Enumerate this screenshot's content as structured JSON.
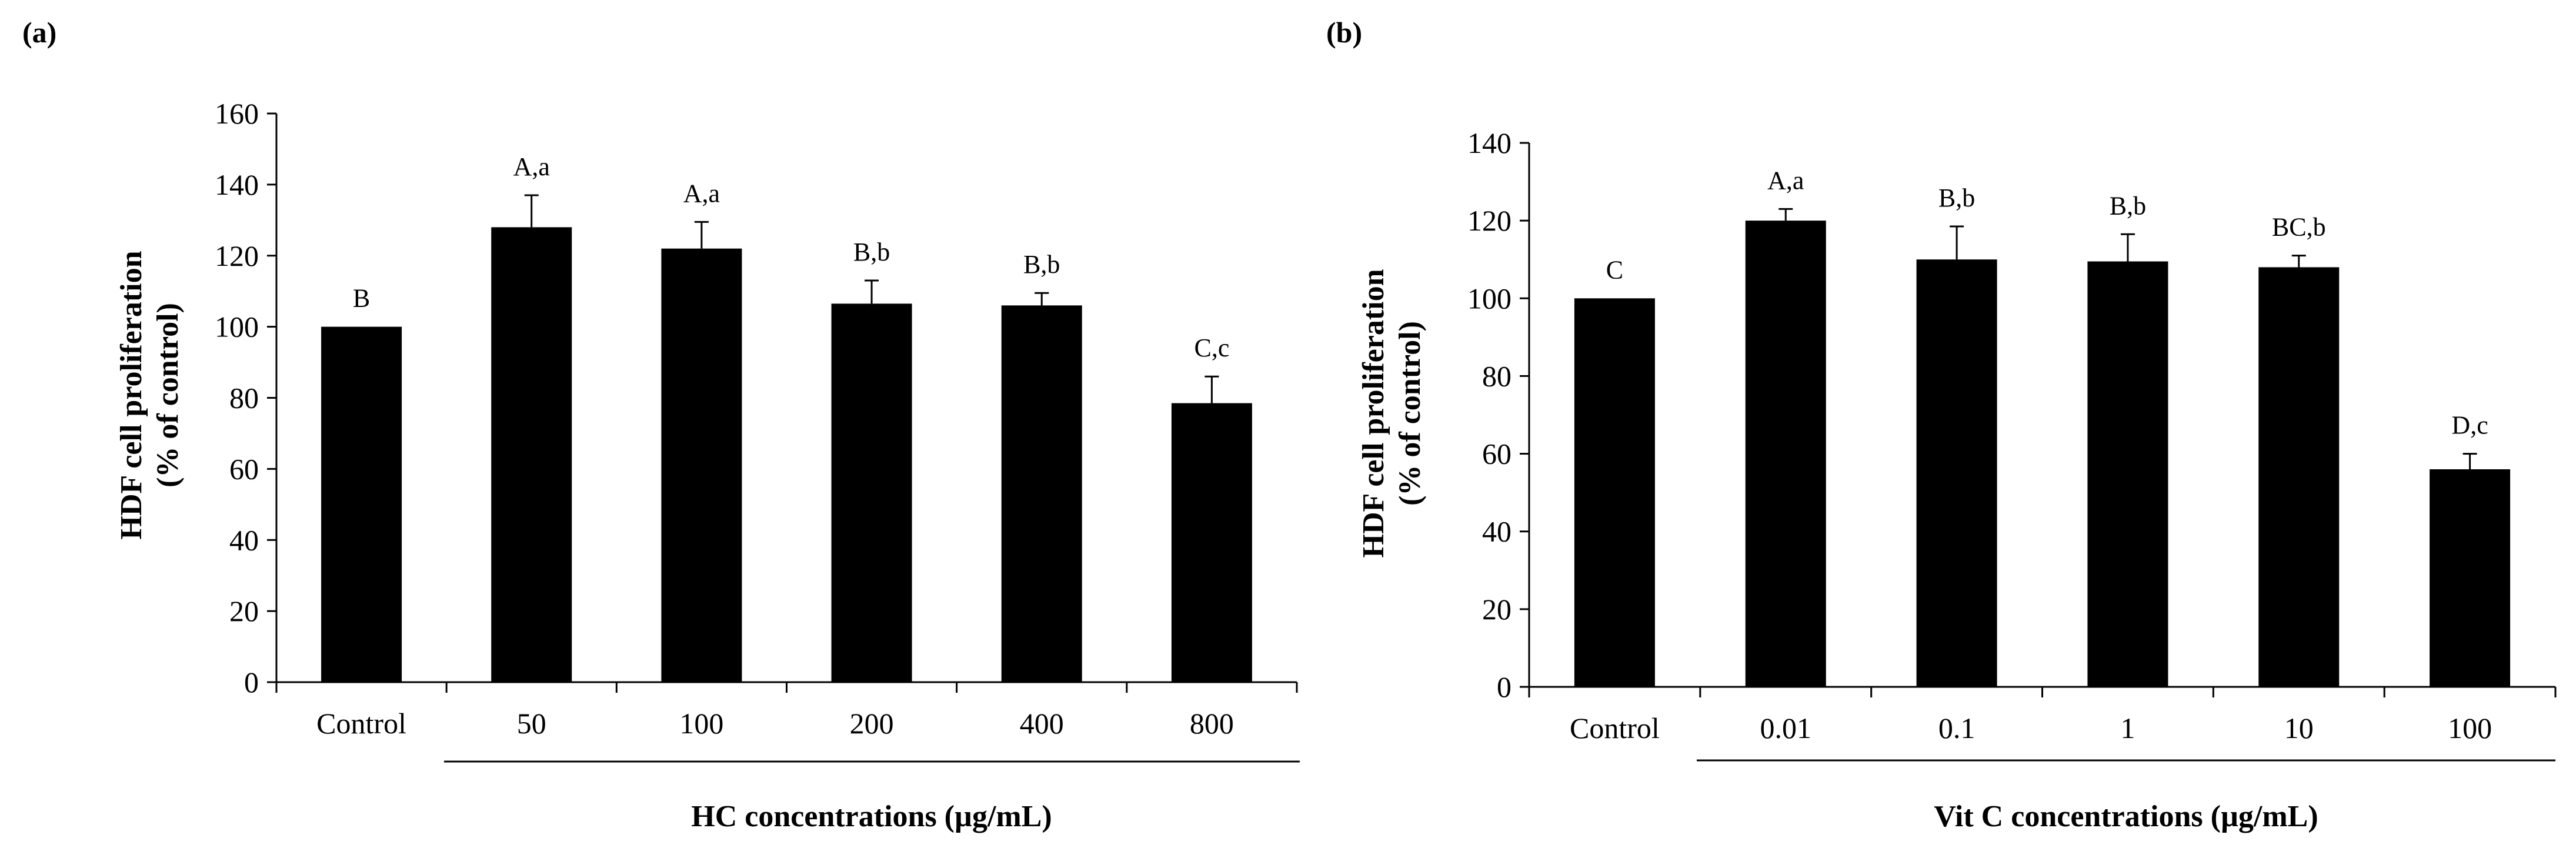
{
  "chart_data": [
    {
      "type": "bar",
      "panel_label": "(a)",
      "title": "",
      "ylabel_line1": "HDF cell proliferation",
      "ylabel_line2": "(% of control)",
      "xlabel": "HC concentrations (µg/mL)",
      "ylim": [
        0,
        160
      ],
      "ytick_step": 20,
      "yticks": [
        "0",
        "20",
        "40",
        "60",
        "80",
        "100",
        "120",
        "140",
        "160"
      ],
      "categories": [
        "Control",
        "50",
        "100",
        "200",
        "400",
        "800"
      ],
      "values": [
        100,
        128,
        122,
        106.5,
        106,
        78.5
      ],
      "errors": [
        0,
        9,
        7.5,
        6.5,
        3.5,
        7.5
      ],
      "significance": [
        "B",
        "A,a",
        "A,a",
        "B,b",
        "B,b",
        "C,c"
      ],
      "bar_color": "#000000"
    },
    {
      "type": "bar",
      "panel_label": "(b)",
      "title": "",
      "ylabel_line1": "HDF cell proliferation",
      "ylabel_line2": "(% of control)",
      "xlabel": "Vit C concentrations (µg/mL)",
      "ylim": [
        0,
        140
      ],
      "ytick_step": 20,
      "yticks": [
        "0",
        "20",
        "40",
        "60",
        "80",
        "100",
        "120",
        "140"
      ],
      "categories": [
        "Control",
        "0.01",
        "0.1",
        "1",
        "10",
        "100"
      ],
      "values": [
        100,
        120,
        110,
        109.5,
        108,
        56
      ],
      "errors": [
        0,
        3,
        8.5,
        7,
        3,
        4
      ],
      "significance": [
        "C",
        "A,a",
        "B,b",
        "B,b",
        "BC,b",
        "D,c"
      ],
      "bar_color": "#000000"
    }
  ]
}
